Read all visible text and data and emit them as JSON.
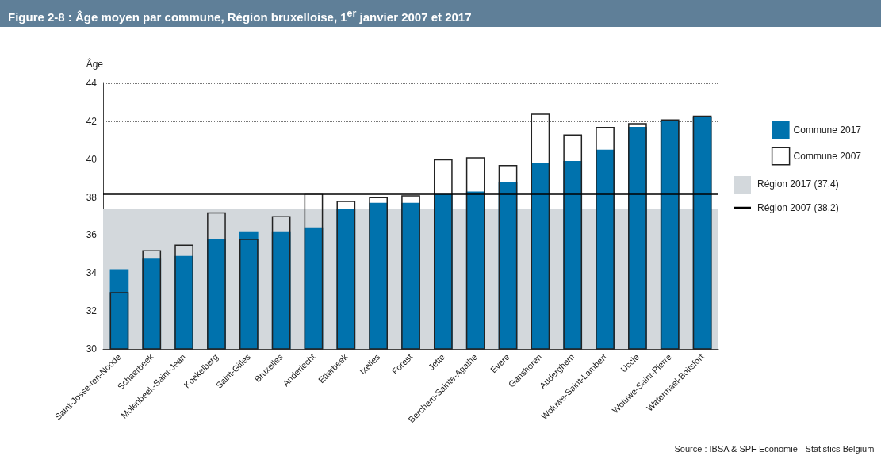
{
  "chart_data": {
    "type": "bar",
    "title": "Figure 2-8 : Âge moyen par commune, Région bruxelloise, 1$^{er}$ janvier 2007 et 2017",
    "ylabel": "Âge",
    "categories": [
      "Saint-Josse-ten-Noode",
      "Schaerbeek",
      "Molenbeek-Saint-Jean",
      "Koekelberg",
      "Saint-Gilles",
      "Bruxelles",
      "Anderlecht",
      "Etterbeek",
      "Ixelles",
      "Forest",
      "Jette",
      "Berchem-Sainte-Agathe",
      "Evere",
      "Ganshoren",
      "Auderghem",
      "Woluwe-Saint-Lambert",
      "Uccle",
      "Woluwe-Saint-Pierre",
      "Watermael-Boitsfort"
    ],
    "series": [
      {
        "name": "Commune 2017",
        "color": "#0072ad",
        "values": [
          34.2,
          34.8,
          34.9,
          35.8,
          36.2,
          36.2,
          36.4,
          37.4,
          37.7,
          37.7,
          38.2,
          38.3,
          38.8,
          39.8,
          39.9,
          40.5,
          41.7,
          42.0,
          42.2
        ]
      },
      {
        "name": "Commune 2007",
        "color": "#222222",
        "values": [
          33.0,
          35.2,
          35.5,
          37.2,
          35.8,
          37.0,
          38.2,
          37.8,
          38.0,
          38.1,
          40.0,
          40.1,
          39.7,
          42.4,
          41.3,
          41.7,
          41.9,
          42.1,
          42.3
        ]
      }
    ],
    "ylim": [
      30,
      44
    ],
    "yticks": [
      30,
      32,
      34,
      36,
      38,
      40,
      42,
      44
    ],
    "grid": "y",
    "legend": "right",
    "bands": [
      {
        "axis": "y",
        "from": 30,
        "to": 37.4,
        "label": "Région 2017 (37,4)",
        "color": "#d3d8dc"
      }
    ],
    "ref_lines": [
      {
        "axis": "y",
        "value": 38.2,
        "label": "Région 2007 (38,2)",
        "color": "#000000",
        "line_style": "solid"
      }
    ],
    "annotations": [
      "Source : IBSA & SPF Economie - Statistics Belgium"
    ]
  }
}
